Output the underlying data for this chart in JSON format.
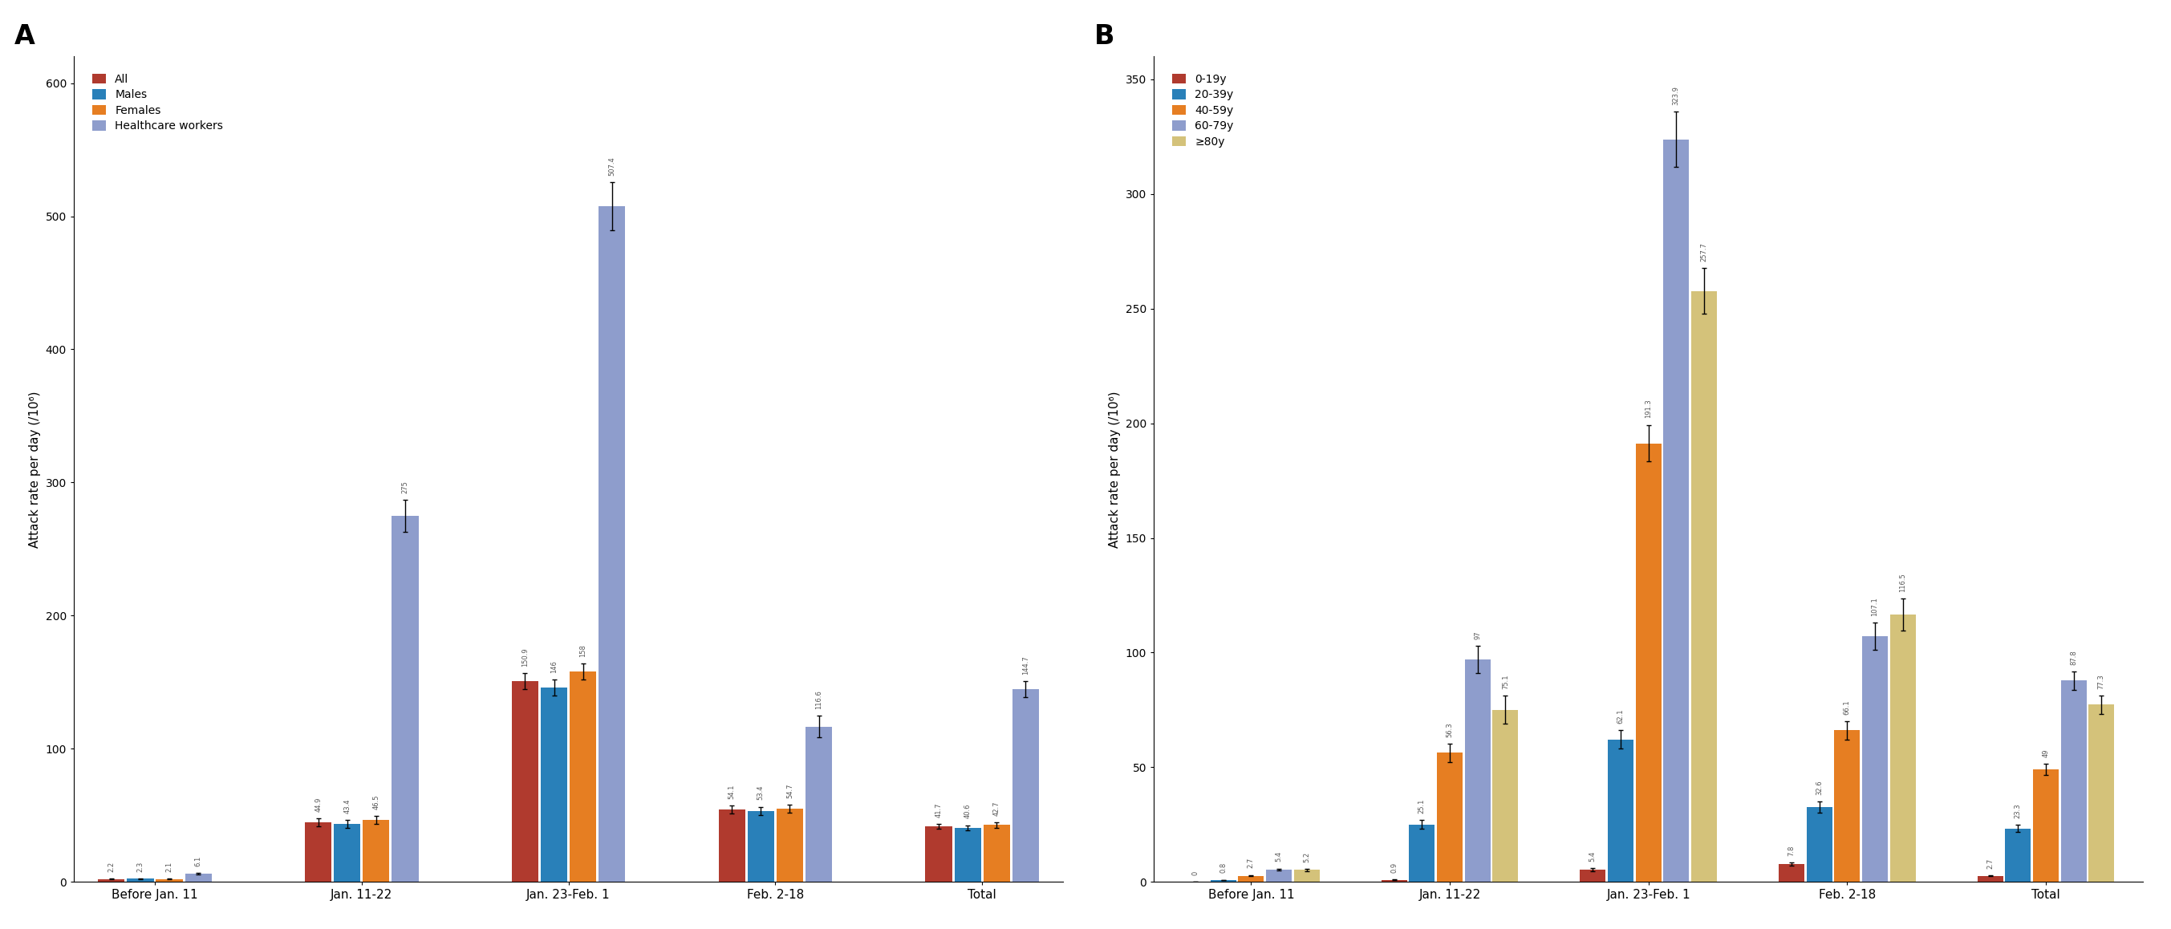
{
  "panel_A": {
    "title": "A",
    "ylabel": "Attack rate per day (/10⁶)",
    "categories": [
      "Before Jan. 11",
      "Jan. 11-22",
      "Jan. 23-Feb. 1",
      "Feb. 2-18",
      "Total"
    ],
    "series": [
      {
        "label": "All",
        "color": "#b03a2e",
        "values": [
          2.2,
          44.9,
          150.9,
          54.1,
          41.7
        ],
        "errors": [
          0.3,
          3.0,
          6.0,
          3.0,
          2.0
        ]
      },
      {
        "label": "Males",
        "color": "#2980b9",
        "values": [
          2.3,
          43.4,
          146.0,
          53.4,
          40.6
        ],
        "errors": [
          0.3,
          3.0,
          6.0,
          3.0,
          2.0
        ]
      },
      {
        "label": "Females",
        "color": "#e67e22",
        "values": [
          2.1,
          46.5,
          158.0,
          54.7,
          42.7
        ],
        "errors": [
          0.3,
          3.0,
          6.0,
          3.0,
          2.0
        ]
      },
      {
        "label": "Healthcare workers",
        "color": "#8e9dcc",
        "values": [
          6.1,
          275.0,
          507.4,
          116.6,
          144.7
        ],
        "errors": [
          0.8,
          12.0,
          18.0,
          8.0,
          6.0
        ]
      }
    ],
    "ylim": [
      0,
      620
    ],
    "yticks": [
      0,
      100,
      200,
      300,
      400,
      500,
      600
    ]
  },
  "panel_B": {
    "title": "B",
    "ylabel": "Attack rate per day (/10⁶)",
    "categories": [
      "Before Jan. 11",
      "Jan. 11-22",
      "Jan. 23-Feb. 1",
      "Feb. 2-18",
      "Total"
    ],
    "series": [
      {
        "label": "0-19y",
        "color": "#b03a2e",
        "values": [
          0.0,
          0.9,
          5.4,
          7.8,
          2.7
        ],
        "errors": [
          0.05,
          0.15,
          0.6,
          0.6,
          0.25
        ]
      },
      {
        "label": "20-39y",
        "color": "#2980b9",
        "values": [
          0.8,
          25.1,
          62.1,
          32.6,
          23.3
        ],
        "errors": [
          0.1,
          2.0,
          4.0,
          2.5,
          1.5
        ]
      },
      {
        "label": "40-59y",
        "color": "#e67e22",
        "values": [
          2.7,
          56.3,
          191.3,
          66.1,
          49.0
        ],
        "errors": [
          0.3,
          4.0,
          8.0,
          4.0,
          2.5
        ]
      },
      {
        "label": "60-79y",
        "color": "#8e9dcc",
        "values": [
          5.4,
          97.0,
          323.9,
          107.1,
          87.8
        ],
        "errors": [
          0.4,
          6.0,
          12.0,
          6.0,
          4.0
        ]
      },
      {
        "label": "≥80y",
        "color": "#d4c27a",
        "values": [
          5.2,
          75.1,
          257.7,
          116.5,
          77.3
        ],
        "errors": [
          0.4,
          6.0,
          10.0,
          7.0,
          4.0
        ]
      }
    ],
    "ylim": [
      0,
      360
    ],
    "yticks": [
      0,
      50,
      100,
      150,
      200,
      250,
      300,
      350
    ]
  }
}
